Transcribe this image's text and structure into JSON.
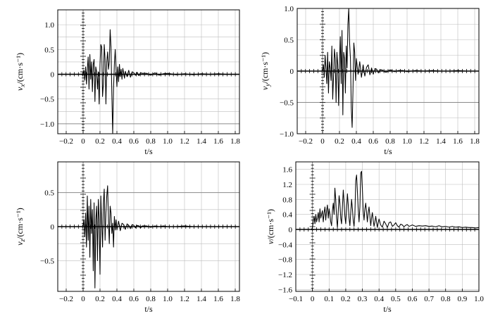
{
  "chart_data": [
    {
      "type": "line",
      "panel": "vx",
      "ylabel": "v_x/(cm·s⁻¹)",
      "ylabel_main": "v",
      "ylabel_sub": "x",
      "ylabel_unit": "/(cm·s⁻¹)",
      "xlabel": "t/s",
      "xlim": [
        -0.3,
        1.85
      ],
      "ylim": [
        -1.2,
        1.3
      ],
      "xticks": [
        -0.2,
        0,
        0.2,
        0.4,
        0.6,
        0.8,
        1.0,
        1.2,
        1.4,
        1.6,
        1.8
      ],
      "xtick_labels": [
        "−0.2",
        "0",
        "0.2",
        "0.4",
        "0.6",
        "0.8",
        "1.0",
        "1.2",
        "1.4",
        "1.6",
        "1.8"
      ],
      "yticks": [
        1.0,
        0.5,
        0,
        -0.5,
        -1.0
      ],
      "ytick_labels": [
        "1.0",
        "0.5",
        "0",
        "−0.5",
        "−1.0"
      ],
      "grid": true,
      "strong_gridlines_y": [
        0,
        -1.0
      ],
      "series": [
        {
          "x": [
            -0.3,
            0.0,
            0.01,
            0.02,
            0.03,
            0.04,
            0.05,
            0.06,
            0.07,
            0.08,
            0.09,
            0.1,
            0.11,
            0.12,
            0.13,
            0.14,
            0.15,
            0.16,
            0.17,
            0.18,
            0.19,
            0.2,
            0.21,
            0.22,
            0.23,
            0.24,
            0.25,
            0.26,
            0.27,
            0.28,
            0.29,
            0.3,
            0.31,
            0.32,
            0.33,
            0.34,
            0.35,
            0.36,
            0.37,
            0.38,
            0.39,
            0.4,
            0.41,
            0.42,
            0.43,
            0.44,
            0.45,
            0.46,
            0.47,
            0.48,
            0.49,
            0.5,
            0.52,
            0.54,
            0.56,
            0.58,
            0.6,
            0.62,
            0.64,
            0.66,
            0.68,
            0.7,
            0.75,
            0.8,
            0.85,
            0.9,
            0.95,
            1.0,
            1.1,
            1.2,
            1.3,
            1.4,
            1.5,
            1.6,
            1.7,
            1.8,
            1.85
          ],
          "y": [
            0,
            0,
            0.08,
            -0.12,
            0.15,
            -0.2,
            0.1,
            0.35,
            -0.3,
            0.4,
            -0.1,
            0.25,
            -0.35,
            0.2,
            0.3,
            -0.55,
            0.15,
            0.05,
            -0.3,
            0.05,
            -0.6,
            0.2,
            0.6,
            0.55,
            -0.45,
            -0.2,
            0.6,
            0.3,
            -0.6,
            0.25,
            0.45,
            0.1,
            0.25,
            0.9,
            0.55,
            -0.4,
            -1.2,
            -0.3,
            0.2,
            0.5,
            0.1,
            -0.25,
            0.15,
            -0.15,
            0.2,
            -0.05,
            0.1,
            -0.1,
            0.12,
            0.02,
            -0.08,
            0.06,
            -0.05,
            0.08,
            -0.06,
            0.05,
            0.03,
            -0.02,
            0.04,
            -0.03,
            0.03,
            0.02,
            0.02,
            -0.02,
            0.03,
            -0.02,
            0.01,
            0.02,
            -0.01,
            0.01,
            -0.01,
            0.01,
            0.0,
            0.01,
            0.0,
            0.0,
            0.0
          ]
        }
      ]
    },
    {
      "type": "line",
      "panel": "vy",
      "ylabel_main": "v",
      "ylabel_sub": "y",
      "ylabel_unit": "/(cm·s⁻¹)",
      "xlabel": "t/s",
      "xlim": [
        -0.3,
        1.85
      ],
      "ylim": [
        -1.0,
        1.0
      ],
      "xticks": [
        -0.2,
        0,
        0.2,
        0.4,
        0.6,
        0.8,
        1.0,
        1.2,
        1.4,
        1.6,
        1.8
      ],
      "xtick_labels": [
        "−0.2",
        "0",
        "0.2",
        "0.4",
        "0.6",
        "0.8",
        "1.0",
        "1.2",
        "1.4",
        "1.6",
        "1.8"
      ],
      "yticks": [
        1.0,
        0.5,
        0,
        -0.5,
        -1.0
      ],
      "ytick_labels": [
        "1.0",
        "0.5",
        "0",
        "−0.5",
        "−1.0"
      ],
      "grid": true,
      "strong_gridlines_y": [
        0,
        -0.5
      ],
      "series": [
        {
          "x": [
            -0.3,
            0.0,
            0.01,
            0.02,
            0.03,
            0.04,
            0.05,
            0.06,
            0.07,
            0.08,
            0.09,
            0.1,
            0.11,
            0.12,
            0.13,
            0.14,
            0.15,
            0.16,
            0.17,
            0.18,
            0.19,
            0.2,
            0.21,
            0.22,
            0.23,
            0.24,
            0.25,
            0.26,
            0.27,
            0.28,
            0.29,
            0.3,
            0.31,
            0.32,
            0.33,
            0.34,
            0.35,
            0.36,
            0.37,
            0.38,
            0.39,
            0.4,
            0.42,
            0.44,
            0.46,
            0.48,
            0.5,
            0.52,
            0.54,
            0.56,
            0.58,
            0.6,
            0.62,
            0.64,
            0.66,
            0.68,
            0.7,
            0.75,
            0.8,
            0.85,
            0.9,
            0.95,
            1.0,
            1.1,
            1.2,
            1.3,
            1.4,
            1.5,
            1.6,
            1.7,
            1.8,
            1.85
          ],
          "y": [
            0,
            0,
            0.1,
            -0.1,
            0.25,
            0.05,
            -0.2,
            0.3,
            -0.35,
            0.15,
            0.05,
            -0.15,
            0.4,
            -0.45,
            -0.1,
            0.35,
            0.2,
            -0.5,
            0.3,
            0.1,
            -0.55,
            0.1,
            0.55,
            -0.2,
            0.65,
            -0.7,
            0.3,
            0.2,
            -0.35,
            0.4,
            0.05,
            0.75,
            1.0,
            0.45,
            0.2,
            -0.6,
            -0.9,
            -0.3,
            0.45,
            0.3,
            -0.15,
            0.2,
            -0.05,
            0.15,
            -0.1,
            0.1,
            -0.08,
            0.06,
            0.1,
            -0.06,
            0.05,
            -0.05,
            0.04,
            0.03,
            -0.03,
            0.02,
            0.02,
            -0.02,
            0.02,
            -0.01,
            0.01,
            0.01,
            -0.01,
            0.01,
            0.0,
            0.01,
            0.0,
            0.0,
            0.01,
            0.0,
            0.0,
            0.0
          ]
        }
      ]
    },
    {
      "type": "line",
      "panel": "vz",
      "ylabel_main": "v",
      "ylabel_sub": "z",
      "ylabel_unit": "/(cm·s⁻¹)",
      "xlabel": "t/s",
      "xlim": [
        -0.3,
        1.85
      ],
      "ylim": [
        -0.95,
        0.95
      ],
      "xticks": [
        -0.2,
        0,
        0.2,
        0.4,
        0.6,
        0.8,
        1.0,
        1.2,
        1.4,
        1.6,
        1.8
      ],
      "xtick_labels": [
        "−0.2",
        "0",
        "0.2",
        "0.4",
        "0.6",
        "0.8",
        "1.0",
        "1.2",
        "1.4",
        "1.6",
        "1.8"
      ],
      "yticks": [
        0.5,
        0,
        -0.5
      ],
      "ytick_labels": [
        "0.5",
        "0",
        "−0.5"
      ],
      "grid": true,
      "strong_gridlines_y": [
        0.5,
        0
      ],
      "series": [
        {
          "x": [
            -0.3,
            0.0,
            0.01,
            0.02,
            0.03,
            0.04,
            0.05,
            0.06,
            0.07,
            0.08,
            0.09,
            0.1,
            0.11,
            0.12,
            0.13,
            0.14,
            0.15,
            0.16,
            0.17,
            0.18,
            0.19,
            0.2,
            0.21,
            0.22,
            0.23,
            0.24,
            0.25,
            0.26,
            0.27,
            0.28,
            0.29,
            0.3,
            0.31,
            0.32,
            0.33,
            0.34,
            0.35,
            0.36,
            0.37,
            0.38,
            0.39,
            0.4,
            0.42,
            0.44,
            0.46,
            0.48,
            0.5,
            0.52,
            0.54,
            0.56,
            0.58,
            0.6,
            0.62,
            0.64,
            0.66,
            0.68,
            0.7,
            0.75,
            0.8,
            0.85,
            0.9,
            0.95,
            1.0,
            1.1,
            1.2,
            1.3,
            1.4,
            1.5,
            1.6,
            1.7,
            1.8,
            1.85
          ],
          "y": [
            0,
            0,
            0.1,
            -0.15,
            0.2,
            -0.3,
            0.45,
            -0.2,
            0.3,
            -0.45,
            0.4,
            -0.1,
            0.25,
            -0.65,
            0.35,
            -0.9,
            0.1,
            0.3,
            -0.5,
            0.4,
            0.1,
            -0.7,
            0.45,
            0.05,
            -0.3,
            0.35,
            0.55,
            -0.2,
            0.2,
            0.45,
            0.6,
            0.1,
            -0.25,
            0.3,
            0.2,
            -0.1,
            0.05,
            -0.3,
            0.15,
            -0.05,
            0.1,
            -0.05,
            0.08,
            -0.06,
            0.05,
            0.03,
            -0.04,
            0.04,
            0.02,
            -0.03,
            0.03,
            0.02,
            -0.02,
            0.02,
            0.01,
            -0.02,
            0.01,
            0.01,
            -0.01,
            0.01,
            0.0,
            0.01,
            0.0,
            0.0,
            0.01,
            0.0,
            0.0,
            0.0,
            0.0,
            0.0,
            0.0,
            0.0
          ]
        }
      ]
    },
    {
      "type": "line",
      "panel": "v",
      "ylabel_main": "v",
      "ylabel_sub": "",
      "ylabel_unit": "/(cm·s⁻¹)",
      "xlabel": "t/s",
      "xlim": [
        -0.1,
        1.0
      ],
      "ylim": [
        -1.65,
        1.8
      ],
      "xticks": [
        -0.1,
        0,
        0.1,
        0.2,
        0.3,
        0.4,
        0.5,
        0.6,
        0.7,
        0.8,
        0.9,
        1.0
      ],
      "xtick_labels": [
        "−0.1",
        "0",
        "0.1",
        "0.2",
        "0.3",
        "0.4",
        "0.5",
        "0.6",
        "0.7",
        "0.8",
        "0.9",
        "1.0"
      ],
      "yticks": [
        1.6,
        1.2,
        0.8,
        0.4,
        0,
        -0.4,
        -0.8,
        -1.2,
        -1.6
      ],
      "ytick_labels": [
        "1.6",
        "1.2",
        "0.8",
        "0.4",
        "0",
        "−0.4",
        "−0.8",
        "−1.2",
        "−1.6"
      ],
      "grid": true,
      "strong_gridlines_y": [],
      "series": [
        {
          "x": [
            -0.1,
            -0.005,
            0.0,
            0.005,
            0.01,
            0.015,
            0.02,
            0.025,
            0.03,
            0.035,
            0.04,
            0.045,
            0.05,
            0.055,
            0.06,
            0.065,
            0.07,
            0.075,
            0.08,
            0.085,
            0.09,
            0.095,
            0.1,
            0.105,
            0.11,
            0.115,
            0.12,
            0.125,
            0.13,
            0.135,
            0.14,
            0.145,
            0.15,
            0.155,
            0.16,
            0.165,
            0.17,
            0.175,
            0.18,
            0.185,
            0.19,
            0.195,
            0.2,
            0.205,
            0.21,
            0.215,
            0.22,
            0.225,
            0.23,
            0.235,
            0.24,
            0.245,
            0.25,
            0.255,
            0.26,
            0.265,
            0.27,
            0.275,
            0.28,
            0.285,
            0.29,
            0.295,
            0.3,
            0.305,
            0.31,
            0.315,
            0.32,
            0.325,
            0.33,
            0.335,
            0.34,
            0.345,
            0.35,
            0.355,
            0.36,
            0.365,
            0.37,
            0.375,
            0.38,
            0.385,
            0.39,
            0.395,
            0.4,
            0.41,
            0.42,
            0.43,
            0.44,
            0.45,
            0.46,
            0.47,
            0.48,
            0.49,
            0.5,
            0.51,
            0.52,
            0.53,
            0.54,
            0.55,
            0.56,
            0.57,
            0.58,
            0.59,
            0.6,
            0.62,
            0.64,
            0.66,
            0.68,
            0.7,
            0.72,
            0.74,
            0.76,
            0.78,
            0.8,
            0.82,
            0.84,
            0.86,
            0.88,
            0.9,
            0.92,
            0.94,
            0.96,
            0.98,
            1.0
          ],
          "y": [
            0,
            0,
            0.05,
            0.2,
            0.35,
            0.15,
            0.4,
            0.2,
            0.3,
            0.45,
            0.2,
            0.55,
            0.3,
            0.4,
            0.5,
            0.2,
            0.45,
            0.6,
            0.25,
            0.5,
            0.65,
            0.3,
            0.55,
            0.4,
            0.2,
            0.1,
            0.5,
            0.7,
            0.4,
            1.1,
            0.8,
            0.3,
            0.05,
            0.5,
            0.9,
            0.7,
            0.3,
            0.15,
            0.6,
            1.05,
            0.75,
            0.35,
            0.15,
            0.55,
            0.95,
            0.65,
            0.3,
            0.1,
            0.45,
            0.8,
            0.55,
            0.25,
            0.08,
            0.4,
            1.3,
            1.45,
            1.0,
            0.55,
            0.2,
            0.6,
            1.5,
            1.55,
            1.1,
            0.5,
            0.25,
            0.55,
            0.7,
            0.45,
            0.2,
            0.45,
            0.6,
            0.35,
            0.1,
            0.3,
            0.45,
            0.25,
            0.08,
            0.2,
            0.35,
            0.2,
            0.05,
            0.18,
            0.28,
            0.12,
            0.06,
            0.22,
            0.15,
            0.05,
            0.18,
            0.2,
            0.08,
            0.12,
            0.18,
            0.1,
            0.06,
            0.14,
            0.12,
            0.07,
            0.11,
            0.13,
            0.08,
            0.1,
            0.12,
            0.08,
            0.1,
            0.09,
            0.1,
            0.08,
            0.09,
            0.07,
            0.1,
            0.07,
            0.08,
            0.06,
            0.08,
            0.06,
            0.07,
            0.05,
            0.06,
            0.05,
            0.05,
            0.04,
            0.05
          ]
        }
      ]
    }
  ]
}
